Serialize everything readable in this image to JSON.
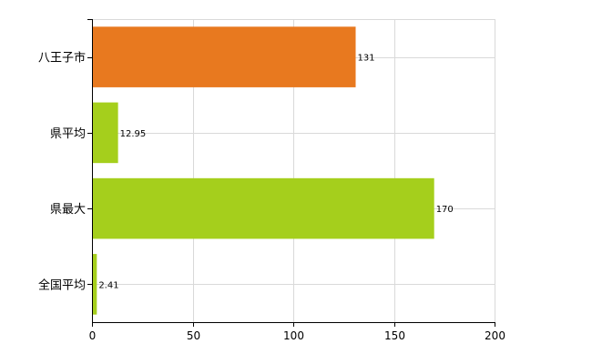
{
  "chart_data": {
    "type": "bar",
    "orientation": "horizontal",
    "title": "",
    "xlabel": "",
    "ylabel": "",
    "categories": [
      "八王子市",
      "県平均",
      "県最大",
      "全国平均"
    ],
    "values": [
      131,
      12.95,
      170,
      2.41
    ],
    "value_labels": [
      "131",
      "12.95",
      "170",
      "2.41"
    ],
    "bar_colors": [
      "#e8791f",
      "#a5cf1c",
      "#a5cf1c",
      "#a5cf1c"
    ],
    "xlim": [
      0,
      200
    ],
    "x_ticks": [
      0,
      50,
      100,
      150,
      200
    ],
    "grid": true,
    "legend": "none"
  }
}
